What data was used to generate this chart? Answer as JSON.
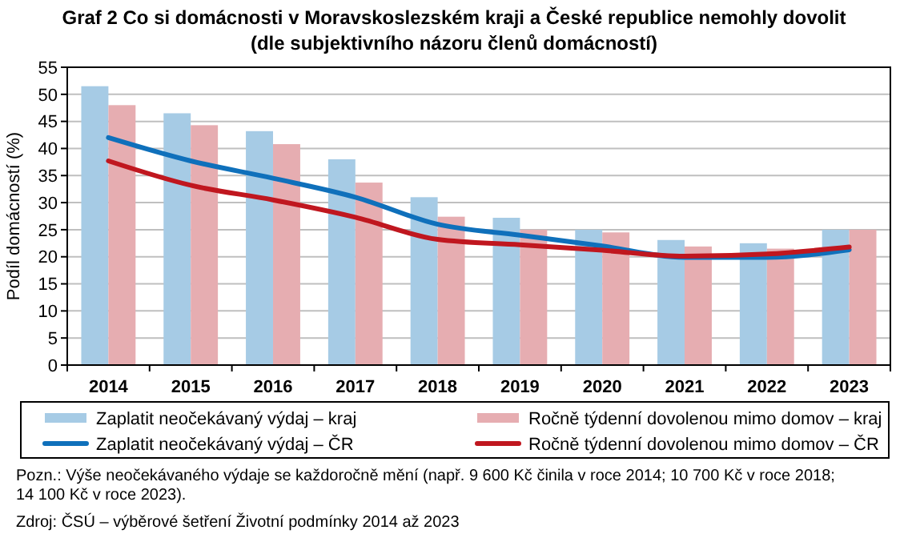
{
  "chart_data": {
    "type": "bar",
    "title": "Graf 2 Co si domácnosti v Moravskoslezském  kraji a České republice nemohly dovolit",
    "subtitle": "(dle subjektivního  názoru členů domácností)",
    "ylabel": "Podíl domácností (%)",
    "categories": [
      "2014",
      "2015",
      "2016",
      "2017",
      "2018",
      "2019",
      "2020",
      "2021",
      "2022",
      "2023"
    ],
    "series": [
      {
        "name": "Zaplatit neočekávaný výdaj – kraj",
        "color": "#a6cbe5",
        "values": [
          51.5,
          46.5,
          43.2,
          38,
          31,
          27.2,
          25,
          23.1,
          22.5,
          25
        ]
      },
      {
        "name": "Ročně týdenní dovolenou mimo  domov – kraj",
        "color": "#e6adb1",
        "values": [
          48,
          44.3,
          40.8,
          33.7,
          27.4,
          25,
          24.5,
          21.9,
          21.5,
          25
        ]
      },
      {
        "name": "Zaplatit neočekávaný výdaj – ČR",
        "type": "line",
        "color": "#0f70bb",
        "values": [
          42,
          37.7,
          34.5,
          31,
          26,
          24,
          22,
          19.9,
          19.9,
          21.3
        ]
      },
      {
        "name": "Ročně týdenní dovolenou mimo  domov – ČR",
        "type": "line",
        "color": "#c0171f",
        "values": [
          37.7,
          33.2,
          30.5,
          27.3,
          23.2,
          22.2,
          21.2,
          20.1,
          20.5,
          21.8
        ]
      }
    ],
    "ylim": [
      0,
      55
    ],
    "yticks": [
      0,
      5,
      10,
      15,
      20,
      25,
      30,
      35,
      40,
      45,
      50,
      55
    ],
    "grid": "y",
    "legend": "bottom",
    "annotations": [
      "Pozn.: Výše neočekávaného výdaje se každoročně mění (např. 9 600 Kč činila v roce 2014; 10 700 Kč v roce 2018; 14 100 Kč v roce 2023).",
      "Zdroj: ČSÚ  – výběrové šetření Životní podmínky 2014 až 2023"
    ]
  }
}
